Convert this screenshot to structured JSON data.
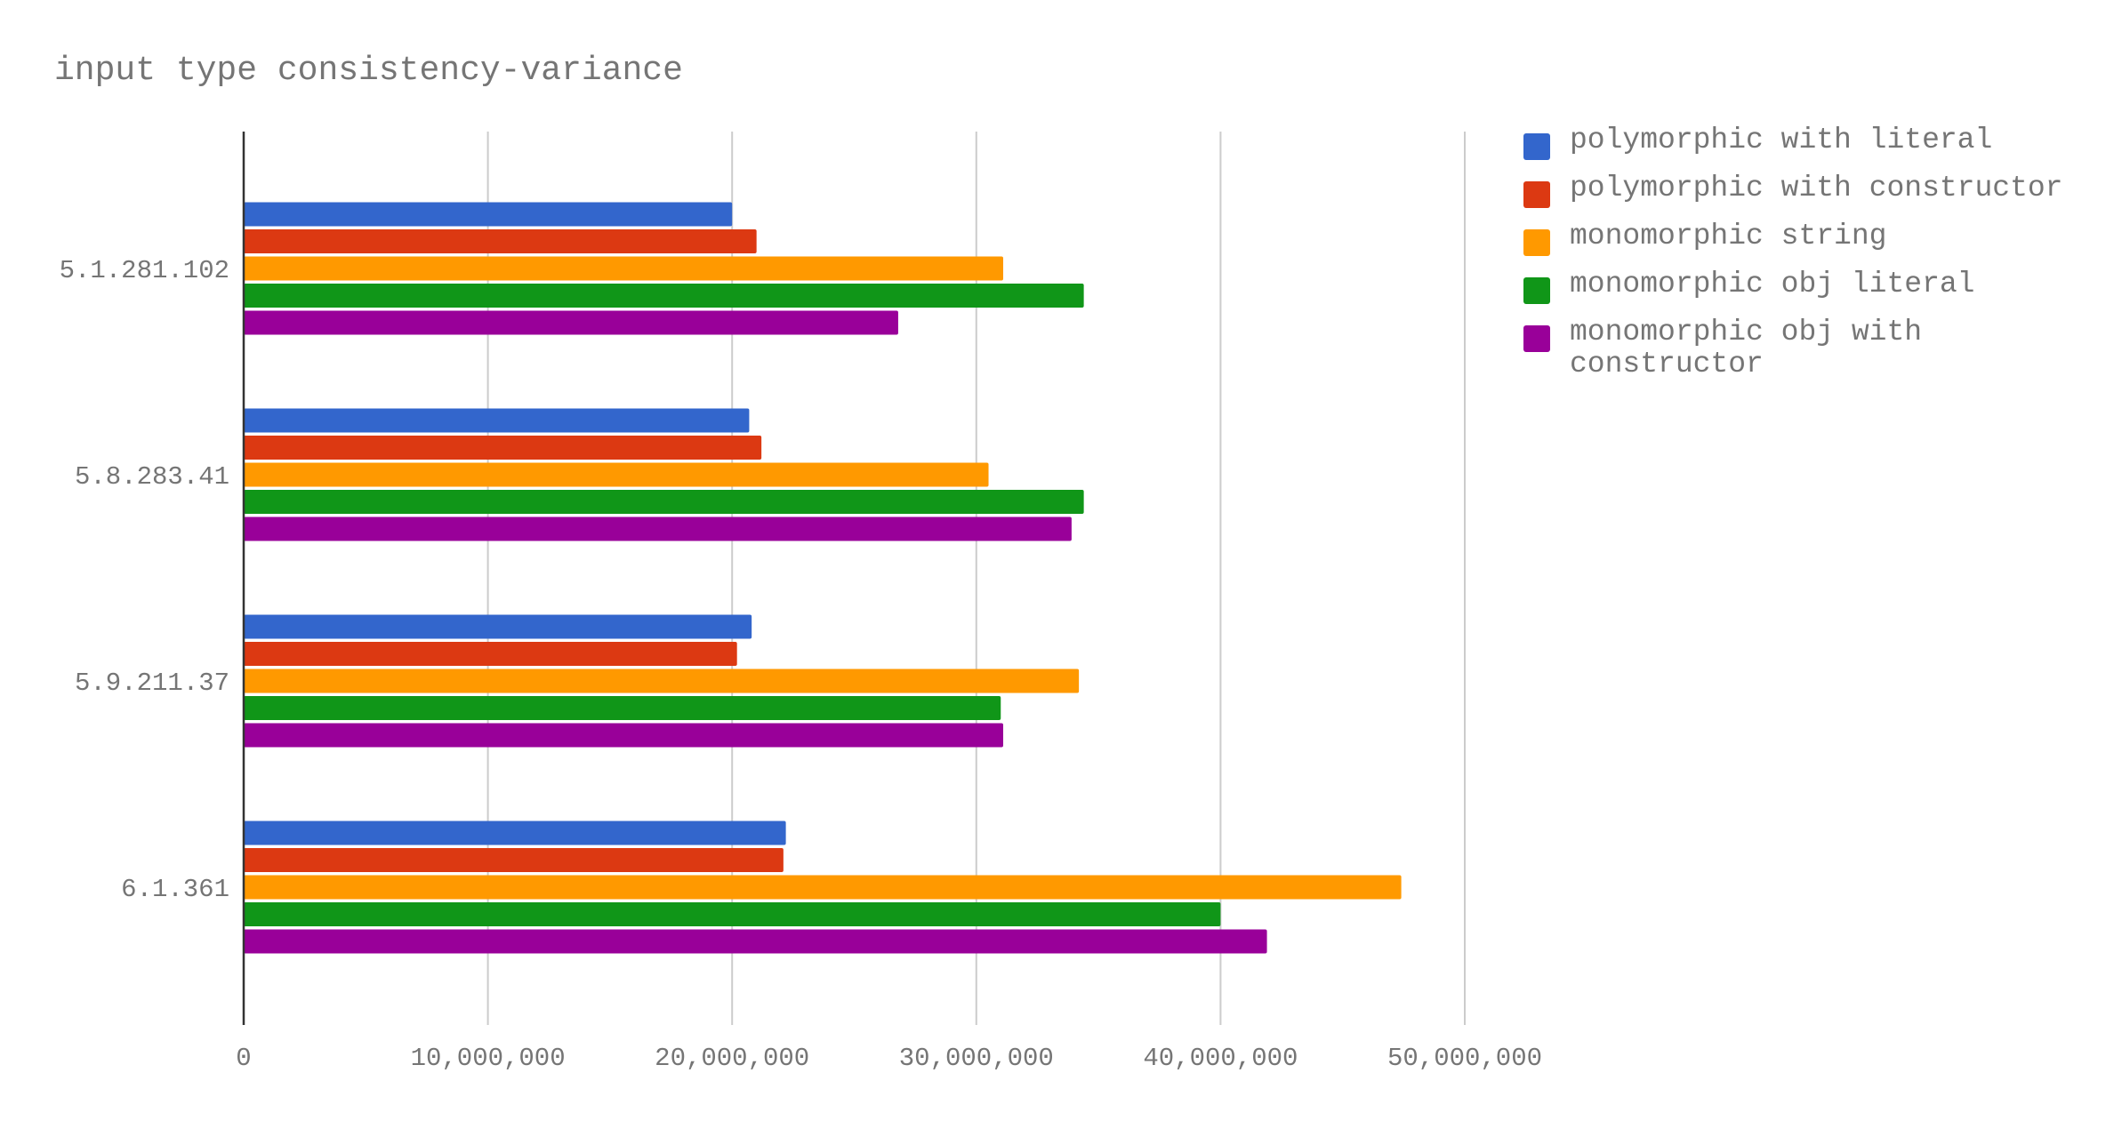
{
  "chart_data": {
    "type": "bar",
    "orientation": "horizontal",
    "title": "input type consistency-variance",
    "xlabel": "",
    "ylabel": "",
    "categories": [
      "5.1.281.102",
      "5.8.283.41",
      "5.9.211.37",
      "6.1.361"
    ],
    "xlim": [
      0,
      50000000
    ],
    "x_ticks": [
      "0",
      "10,000,000",
      "20,000,000",
      "30,000,000",
      "40,000,000",
      "50,000,000"
    ],
    "grid": true,
    "legend_position": "right",
    "series": [
      {
        "name": "polymorphic with literal",
        "color": "#3366cc",
        "values": [
          20000000,
          20700000,
          20800000,
          22200000
        ]
      },
      {
        "name": "polymorphic with constructor",
        "color": "#dc3912",
        "values": [
          21000000,
          21200000,
          20200000,
          22100000
        ]
      },
      {
        "name": "monomorphic string",
        "color": "#ff9900",
        "values": [
          31100000,
          30500000,
          34200000,
          47400000
        ]
      },
      {
        "name": "monomorphic obj literal",
        "color": "#109618",
        "values": [
          34400000,
          34400000,
          31000000,
          40000000
        ]
      },
      {
        "name": "monomorphic obj with constructor",
        "color": "#990099",
        "values": [
          26800000,
          33900000,
          31100000,
          41900000
        ]
      }
    ]
  }
}
